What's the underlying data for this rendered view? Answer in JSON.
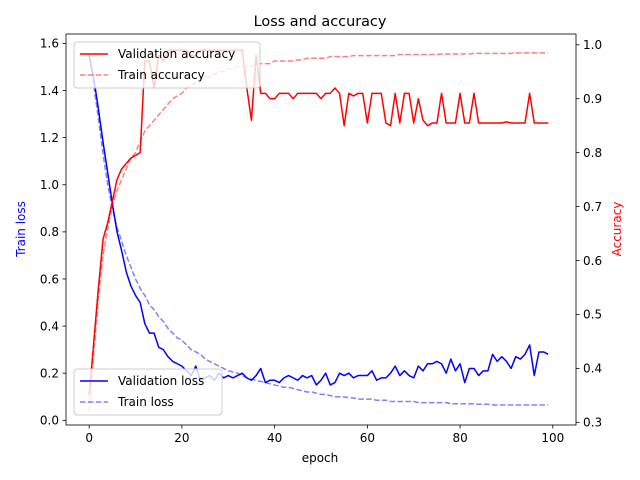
{
  "chart_data": {
    "type": "line",
    "title": "Loss and accuracy",
    "xlabel": "epoch",
    "ylabel_left": "Train loss",
    "ylabel_right": "Accuracy",
    "xlim": [
      -5,
      105
    ],
    "ylim_left": [
      -0.02,
      1.64
    ],
    "ylim_right": [
      0.295,
      1.02
    ],
    "x_ticks": [
      0,
      20,
      40,
      60,
      80,
      100
    ],
    "y_left_ticks": [
      0.0,
      0.2,
      0.4,
      0.6,
      0.8,
      1.0,
      1.2,
      1.4,
      1.6
    ],
    "y_right_ticks": [
      0.3,
      0.4,
      0.5,
      0.6,
      0.7,
      0.8,
      0.9,
      1.0
    ],
    "grid": false,
    "legends": [
      {
        "placement": "upper-left",
        "entries": [
          "Validation accuracy",
          "Train accuracy"
        ]
      },
      {
        "placement": "lower-left",
        "entries": [
          "Validation loss",
          "Train loss"
        ]
      }
    ],
    "series": [
      {
        "name": "Validation loss",
        "axis": "left",
        "color": "#0000ff",
        "style": "solid",
        "opacity": 1,
        "x": [
          0,
          1,
          2,
          3,
          4,
          5,
          6,
          7,
          8,
          9,
          10,
          11,
          12,
          13,
          14,
          15,
          16,
          17,
          18,
          19,
          20,
          21,
          22,
          23,
          24,
          25,
          26,
          27,
          28,
          29,
          30,
          31,
          32,
          33,
          34,
          35,
          36,
          37,
          38,
          39,
          40,
          41,
          42,
          43,
          44,
          45,
          46,
          47,
          48,
          49,
          50,
          51,
          52,
          53,
          54,
          55,
          56,
          57,
          58,
          59,
          60,
          61,
          62,
          63,
          64,
          65,
          66,
          67,
          68,
          69,
          70,
          71,
          72,
          73,
          74,
          75,
          76,
          77,
          78,
          79,
          80,
          81,
          82,
          83,
          84,
          85,
          86,
          87,
          88,
          89,
          90,
          91,
          92,
          93,
          94,
          95,
          96,
          97,
          98,
          99
        ],
        "y": [
          1.55,
          1.45,
          1.32,
          1.18,
          1.05,
          0.92,
          0.8,
          0.72,
          0.63,
          0.57,
          0.53,
          0.5,
          0.41,
          0.37,
          0.37,
          0.31,
          0.3,
          0.27,
          0.25,
          0.24,
          0.23,
          0.21,
          0.19,
          0.23,
          0.17,
          0.18,
          0.19,
          0.17,
          0.2,
          0.18,
          0.19,
          0.18,
          0.19,
          0.2,
          0.18,
          0.17,
          0.19,
          0.22,
          0.16,
          0.17,
          0.17,
          0.16,
          0.18,
          0.19,
          0.18,
          0.17,
          0.19,
          0.18,
          0.19,
          0.15,
          0.17,
          0.2,
          0.15,
          0.16,
          0.2,
          0.19,
          0.2,
          0.18,
          0.19,
          0.19,
          0.19,
          0.21,
          0.17,
          0.18,
          0.18,
          0.2,
          0.23,
          0.19,
          0.21,
          0.19,
          0.18,
          0.23,
          0.21,
          0.24,
          0.24,
          0.25,
          0.24,
          0.2,
          0.26,
          0.21,
          0.24,
          0.16,
          0.22,
          0.22,
          0.19,
          0.21,
          0.21,
          0.28,
          0.25,
          0.27,
          0.25,
          0.22,
          0.27,
          0.26,
          0.28,
          0.32,
          0.19,
          0.29,
          0.29,
          0.28
        ]
      },
      {
        "name": "Train loss",
        "axis": "left",
        "color": "#0000ff",
        "style": "dashed",
        "opacity": 0.5,
        "x": [
          0,
          1,
          2,
          3,
          4,
          5,
          6,
          7,
          8,
          9,
          10,
          11,
          12,
          13,
          14,
          15,
          16,
          17,
          18,
          19,
          20,
          21,
          22,
          23,
          24,
          25,
          26,
          27,
          28,
          29,
          30,
          31,
          32,
          33,
          34,
          35,
          36,
          37,
          38,
          39,
          40,
          41,
          42,
          43,
          44,
          45,
          46,
          47,
          48,
          49,
          50,
          51,
          52,
          53,
          54,
          55,
          56,
          57,
          58,
          59,
          60,
          61,
          62,
          63,
          64,
          65,
          66,
          67,
          68,
          69,
          70,
          71,
          72,
          73,
          74,
          75,
          76,
          77,
          78,
          79,
          80,
          81,
          82,
          83,
          84,
          85,
          86,
          87,
          88,
          89,
          90,
          91,
          92,
          93,
          94,
          95,
          96,
          97,
          98,
          99
        ],
        "y": [
          1.55,
          1.42,
          1.28,
          1.13,
          1.0,
          0.9,
          0.82,
          0.76,
          0.7,
          0.65,
          0.6,
          0.56,
          0.53,
          0.49,
          0.47,
          0.44,
          0.42,
          0.39,
          0.37,
          0.35,
          0.34,
          0.32,
          0.3,
          0.29,
          0.28,
          0.26,
          0.25,
          0.24,
          0.23,
          0.22,
          0.21,
          0.205,
          0.2,
          0.19,
          0.18,
          0.175,
          0.17,
          0.165,
          0.16,
          0.155,
          0.15,
          0.145,
          0.14,
          0.14,
          0.135,
          0.13,
          0.125,
          0.12,
          0.12,
          0.115,
          0.11,
          0.11,
          0.105,
          0.1,
          0.1,
          0.1,
          0.095,
          0.095,
          0.09,
          0.09,
          0.09,
          0.09,
          0.085,
          0.085,
          0.085,
          0.08,
          0.08,
          0.08,
          0.08,
          0.08,
          0.08,
          0.075,
          0.075,
          0.075,
          0.075,
          0.075,
          0.075,
          0.075,
          0.07,
          0.07,
          0.07,
          0.07,
          0.07,
          0.07,
          0.068,
          0.068,
          0.068,
          0.065,
          0.065,
          0.065,
          0.065,
          0.065,
          0.065,
          0.065,
          0.065,
          0.065,
          0.065,
          0.065,
          0.065,
          0.065
        ]
      },
      {
        "name": "Validation accuracy",
        "axis": "right",
        "color": "#ff0000",
        "style": "solid",
        "opacity": 1,
        "x": [
          0,
          1,
          2,
          3,
          4,
          5,
          6,
          7,
          8,
          9,
          10,
          11,
          12,
          13,
          14,
          15,
          16,
          17,
          18,
          19,
          20,
          21,
          22,
          23,
          24,
          25,
          26,
          27,
          28,
          29,
          30,
          31,
          32,
          33,
          34,
          35,
          36,
          37,
          38,
          39,
          40,
          41,
          42,
          43,
          44,
          45,
          46,
          47,
          48,
          49,
          50,
          51,
          52,
          53,
          54,
          55,
          56,
          57,
          58,
          59,
          60,
          61,
          62,
          63,
          64,
          65,
          66,
          67,
          68,
          69,
          70,
          71,
          72,
          73,
          74,
          75,
          76,
          77,
          78,
          79,
          80,
          81,
          82,
          83,
          84,
          85,
          86,
          87,
          88,
          89,
          90,
          91,
          92,
          93,
          94,
          95,
          96,
          97,
          98,
          99
        ],
        "y": [
          0.35,
          0.45,
          0.55,
          0.64,
          0.67,
          0.71,
          0.75,
          0.77,
          0.78,
          0.79,
          0.795,
          0.8,
          0.97,
          0.97,
          0.92,
          0.98,
          0.97,
          0.99,
          0.99,
          0.99,
          0.99,
          0.99,
          0.98,
          0.98,
          0.99,
          0.99,
          0.99,
          0.99,
          0.99,
          0.99,
          0.99,
          0.99,
          0.99,
          0.99,
          0.92,
          0.86,
          0.98,
          0.91,
          0.91,
          0.9,
          0.9,
          0.91,
          0.91,
          0.91,
          0.9,
          0.91,
          0.91,
          0.91,
          0.91,
          0.91,
          0.9,
          0.91,
          0.91,
          0.92,
          0.91,
          0.85,
          0.91,
          0.905,
          0.91,
          0.91,
          0.855,
          0.91,
          0.91,
          0.91,
          0.855,
          0.85,
          0.91,
          0.855,
          0.91,
          0.91,
          0.855,
          0.9,
          0.86,
          0.85,
          0.855,
          0.855,
          0.91,
          0.855,
          0.855,
          0.855,
          0.91,
          0.855,
          0.855,
          0.91,
          0.855,
          0.855,
          0.855,
          0.855,
          0.855,
          0.855,
          0.857,
          0.855,
          0.855,
          0.855,
          0.855,
          0.91,
          0.855,
          0.855,
          0.855,
          0.855
        ]
      },
      {
        "name": "Train accuracy",
        "axis": "right",
        "color": "#ff0000",
        "style": "dashed",
        "opacity": 0.5,
        "x": [
          0,
          1,
          2,
          3,
          4,
          5,
          6,
          7,
          8,
          9,
          10,
          11,
          12,
          13,
          14,
          15,
          16,
          17,
          18,
          19,
          20,
          21,
          22,
          23,
          24,
          25,
          26,
          27,
          28,
          29,
          30,
          31,
          32,
          33,
          34,
          35,
          36,
          37,
          38,
          39,
          40,
          41,
          42,
          43,
          44,
          45,
          46,
          47,
          48,
          49,
          50,
          51,
          52,
          53,
          54,
          55,
          56,
          57,
          58,
          59,
          60,
          61,
          62,
          63,
          64,
          65,
          66,
          67,
          68,
          69,
          70,
          71,
          72,
          73,
          74,
          75,
          76,
          77,
          78,
          79,
          80,
          81,
          82,
          83,
          84,
          85,
          86,
          87,
          88,
          89,
          90,
          91,
          92,
          93,
          94,
          95,
          96,
          97,
          98,
          99
        ],
        "y": [
          0.32,
          0.43,
          0.53,
          0.61,
          0.66,
          0.7,
          0.73,
          0.75,
          0.77,
          0.79,
          0.8,
          0.82,
          0.84,
          0.85,
          0.86,
          0.87,
          0.88,
          0.89,
          0.9,
          0.905,
          0.91,
          0.92,
          0.925,
          0.93,
          0.935,
          0.94,
          0.94,
          0.945,
          0.95,
          0.95,
          0.955,
          0.955,
          0.96,
          0.96,
          0.96,
          0.96,
          0.965,
          0.965,
          0.965,
          0.965,
          0.97,
          0.97,
          0.97,
          0.97,
          0.97,
          0.972,
          0.972,
          0.975,
          0.975,
          0.975,
          0.975,
          0.975,
          0.978,
          0.978,
          0.978,
          0.978,
          0.978,
          0.98,
          0.98,
          0.98,
          0.98,
          0.98,
          0.98,
          0.98,
          0.98,
          0.98,
          0.98,
          0.982,
          0.982,
          0.982,
          0.982,
          0.982,
          0.982,
          0.982,
          0.982,
          0.982,
          0.983,
          0.983,
          0.983,
          0.983,
          0.983,
          0.983,
          0.983,
          0.984,
          0.984,
          0.984,
          0.984,
          0.984,
          0.984,
          0.984,
          0.984,
          0.984,
          0.985,
          0.985,
          0.985,
          0.985,
          0.985,
          0.985,
          0.985,
          0.985
        ]
      }
    ]
  }
}
